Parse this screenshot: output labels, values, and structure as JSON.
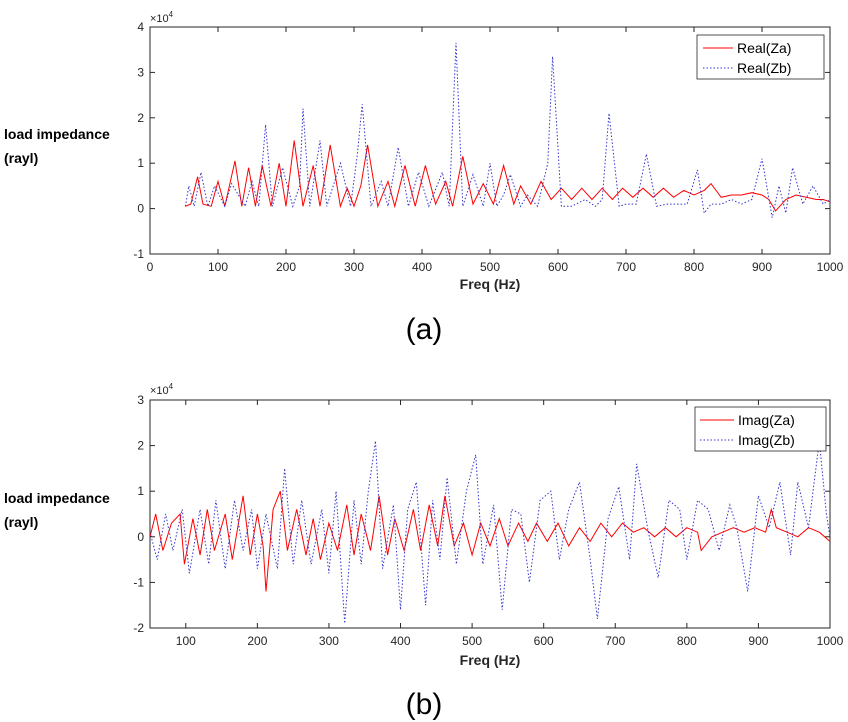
{
  "figure": {
    "caption_a": "(a)",
    "caption_b": "(b)"
  },
  "chart_data": [
    {
      "type": "line",
      "panel": "(a)",
      "xlabel": "Freq (Hz)",
      "ylabel_line1": "load impedance",
      "ylabel_line2": "(rayl)",
      "exponent_base": "×10",
      "exponent_power": "4",
      "y_multiplier": 10000,
      "xlim": [
        0,
        1000
      ],
      "ylim": [
        -1,
        4
      ],
      "xticks": [
        0,
        100,
        200,
        300,
        400,
        500,
        600,
        700,
        800,
        900,
        1000
      ],
      "yticks": [
        -1,
        0,
        1,
        2,
        3,
        4
      ],
      "grid": false,
      "legend_position": "top-right",
      "series": [
        {
          "name": "Real(Za)",
          "color": "#ff0000",
          "style": "solid",
          "x": [
            52,
            60,
            70,
            78,
            90,
            100,
            110,
            125,
            135,
            145,
            155,
            165,
            178,
            190,
            200,
            212,
            225,
            240,
            250,
            265,
            280,
            290,
            300,
            310,
            320,
            335,
            350,
            360,
            375,
            390,
            405,
            420,
            435,
            445,
            460,
            475,
            490,
            505,
            520,
            535,
            545,
            560,
            575,
            590,
            605,
            620,
            635,
            650,
            665,
            680,
            695,
            710,
            725,
            740,
            755,
            770,
            785,
            800,
            815,
            825,
            840,
            855,
            870,
            885,
            900,
            910,
            920,
            935,
            950,
            965,
            980,
            990,
            1000
          ],
          "values": [
            0.05,
            0.1,
            0.7,
            0.1,
            0.05,
            0.6,
            0.05,
            1.05,
            0.05,
            0.9,
            0.05,
            0.95,
            0.05,
            1.0,
            0.05,
            1.5,
            0.05,
            0.95,
            0.05,
            1.4,
            0.05,
            0.45,
            0.05,
            0.5,
            1.4,
            0.05,
            0.6,
            0.05,
            0.95,
            0.05,
            0.95,
            0.1,
            0.6,
            0.05,
            1.15,
            0.1,
            0.55,
            0.1,
            0.95,
            0.1,
            0.5,
            0.1,
            0.6,
            0.2,
            0.45,
            0.2,
            0.45,
            0.2,
            0.45,
            0.2,
            0.45,
            0.25,
            0.45,
            0.25,
            0.45,
            0.25,
            0.4,
            0.3,
            0.4,
            0.55,
            0.25,
            0.3,
            0.3,
            0.35,
            0.3,
            0.2,
            -0.05,
            0.2,
            0.3,
            0.25,
            0.2,
            0.2,
            0.15
          ]
        },
        {
          "name": "Real(Zb)",
          "color": "#3333cc",
          "style": "dotted",
          "x": [
            52,
            57,
            65,
            75,
            85,
            95,
            110,
            120,
            140,
            150,
            160,
            170,
            180,
            195,
            210,
            220,
            225,
            235,
            250,
            260,
            280,
            295,
            305,
            312,
            325,
            340,
            350,
            365,
            380,
            395,
            410,
            430,
            440,
            450,
            460,
            475,
            490,
            500,
            510,
            520,
            530,
            545,
            555,
            570,
            585,
            592,
            605,
            620,
            640,
            655,
            665,
            675,
            690,
            700,
            715,
            730,
            745,
            760,
            775,
            790,
            805,
            815,
            825,
            840,
            855,
            870,
            885,
            900,
            915,
            925,
            935,
            945,
            960,
            975,
            990,
            1000
          ],
          "values": [
            0.05,
            0.5,
            0.05,
            0.8,
            0.05,
            0.5,
            0.05,
            0.55,
            0.05,
            0.6,
            0.05,
            1.85,
            0.05,
            0.9,
            0.05,
            0.5,
            2.2,
            0.05,
            1.5,
            0.05,
            1.0,
            0.05,
            1.2,
            2.3,
            0.05,
            0.6,
            0.05,
            1.35,
            0.05,
            0.8,
            0.05,
            0.8,
            0.05,
            3.65,
            0.05,
            0.75,
            0.05,
            1.0,
            0.05,
            0.3,
            0.75,
            0.05,
            0.3,
            0.05,
            1.0,
            3.35,
            0.05,
            0.05,
            0.2,
            0.05,
            0.2,
            2.1,
            0.05,
            0.1,
            0.1,
            1.2,
            0.05,
            0.1,
            0.1,
            0.1,
            0.85,
            -0.1,
            0.1,
            0.1,
            0.2,
            0.1,
            0.2,
            1.1,
            -0.2,
            0.5,
            -0.1,
            0.9,
            0.1,
            0.5,
            0.1,
            0.2
          ]
        }
      ]
    },
    {
      "type": "line",
      "panel": "(b)",
      "xlabel": "Freq (Hz)",
      "ylabel_line1": "load impedance",
      "ylabel_line2": "(rayl)",
      "exponent_base": "×10",
      "exponent_power": "4",
      "y_multiplier": 10000,
      "xlim": [
        50,
        1000
      ],
      "ylim": [
        -2,
        3
      ],
      "xticks": [
        100,
        200,
        300,
        400,
        500,
        600,
        700,
        800,
        900,
        1000
      ],
      "yticks": [
        -2,
        -1,
        0,
        1,
        2,
        3
      ],
      "grid": false,
      "legend_position": "top-right",
      "series": [
        {
          "name": "Imag(Za)",
          "color": "#ff0000",
          "style": "solid",
          "x": [
            50,
            58,
            68,
            80,
            92,
            98,
            110,
            120,
            130,
            140,
            155,
            165,
            180,
            190,
            200,
            208,
            212,
            222,
            232,
            242,
            255,
            268,
            278,
            288,
            300,
            312,
            325,
            335,
            345,
            358,
            370,
            382,
            392,
            405,
            418,
            428,
            440,
            452,
            462,
            475,
            488,
            500,
            512,
            525,
            538,
            550,
            565,
            578,
            590,
            605,
            620,
            635,
            650,
            665,
            680,
            695,
            710,
            725,
            740,
            755,
            770,
            785,
            800,
            815,
            820,
            835,
            850,
            865,
            880,
            895,
            910,
            918,
            925,
            940,
            955,
            970,
            985,
            1000
          ],
          "values": [
            0.0,
            0.5,
            -0.3,
            0.3,
            0.5,
            -0.6,
            0.4,
            -0.4,
            0.6,
            -0.3,
            0.5,
            -0.5,
            0.9,
            -0.4,
            0.5,
            -0.2,
            -1.2,
            0.6,
            1.0,
            -0.3,
            0.6,
            -0.4,
            0.4,
            -0.5,
            0.3,
            -0.3,
            0.7,
            -0.4,
            0.5,
            -0.3,
            0.9,
            -0.4,
            0.4,
            -0.3,
            0.6,
            -0.3,
            0.7,
            -0.2,
            0.9,
            -0.2,
            0.3,
            -0.4,
            0.3,
            -0.2,
            0.4,
            -0.2,
            0.3,
            -0.1,
            0.3,
            -0.1,
            0.3,
            -0.2,
            0.2,
            -0.1,
            0.3,
            0.0,
            0.3,
            0.1,
            0.2,
            0.0,
            0.2,
            0.0,
            0.2,
            0.1,
            -0.3,
            0.0,
            0.1,
            0.2,
            0.1,
            0.2,
            0.1,
            0.6,
            0.2,
            0.1,
            0.0,
            0.2,
            0.1,
            -0.1
          ]
        },
        {
          "name": "Imag(Zb)",
          "color": "#3333cc",
          "style": "dotted",
          "x": [
            50,
            60,
            72,
            82,
            95,
            105,
            120,
            132,
            142,
            155,
            168,
            180,
            192,
            200,
            212,
            228,
            238,
            250,
            262,
            275,
            290,
            300,
            310,
            322,
            335,
            345,
            355,
            365,
            375,
            390,
            400,
            410,
            422,
            435,
            445,
            455,
            465,
            478,
            492,
            505,
            515,
            530,
            542,
            555,
            568,
            580,
            595,
            610,
            622,
            635,
            650,
            665,
            675,
            690,
            705,
            720,
            730,
            745,
            760,
            775,
            790,
            800,
            815,
            830,
            845,
            860,
            870,
            885,
            900,
            915,
            930,
            945,
            955,
            970,
            985,
            995,
            1000
          ],
          "values": [
            0.1,
            -0.5,
            0.5,
            -0.3,
            0.6,
            -0.8,
            0.6,
            -0.6,
            0.8,
            -0.7,
            0.8,
            -0.3,
            0.6,
            -0.7,
            0.5,
            -0.7,
            1.5,
            -0.6,
            0.8,
            -0.6,
            0.6,
            -0.8,
            1.0,
            -1.9,
            0.8,
            -0.6,
            1.0,
            2.1,
            -0.7,
            0.7,
            -1.6,
            0.6,
            1.2,
            -1.5,
            0.8,
            -0.5,
            1.3,
            -0.6,
            1.0,
            1.8,
            -0.6,
            0.7,
            -1.6,
            0.6,
            0.5,
            -1.0,
            0.8,
            1.0,
            -0.5,
            0.6,
            1.2,
            -0.5,
            -1.8,
            0.4,
            1.1,
            -0.5,
            1.6,
            0.2,
            -0.9,
            0.8,
            0.6,
            -0.5,
            0.8,
            0.6,
            -0.3,
            0.7,
            0.2,
            -1.2,
            0.9,
            0.2,
            1.2,
            -0.4,
            1.2,
            0.2,
            2.1,
            0.5,
            0.0
          ]
        }
      ]
    }
  ]
}
